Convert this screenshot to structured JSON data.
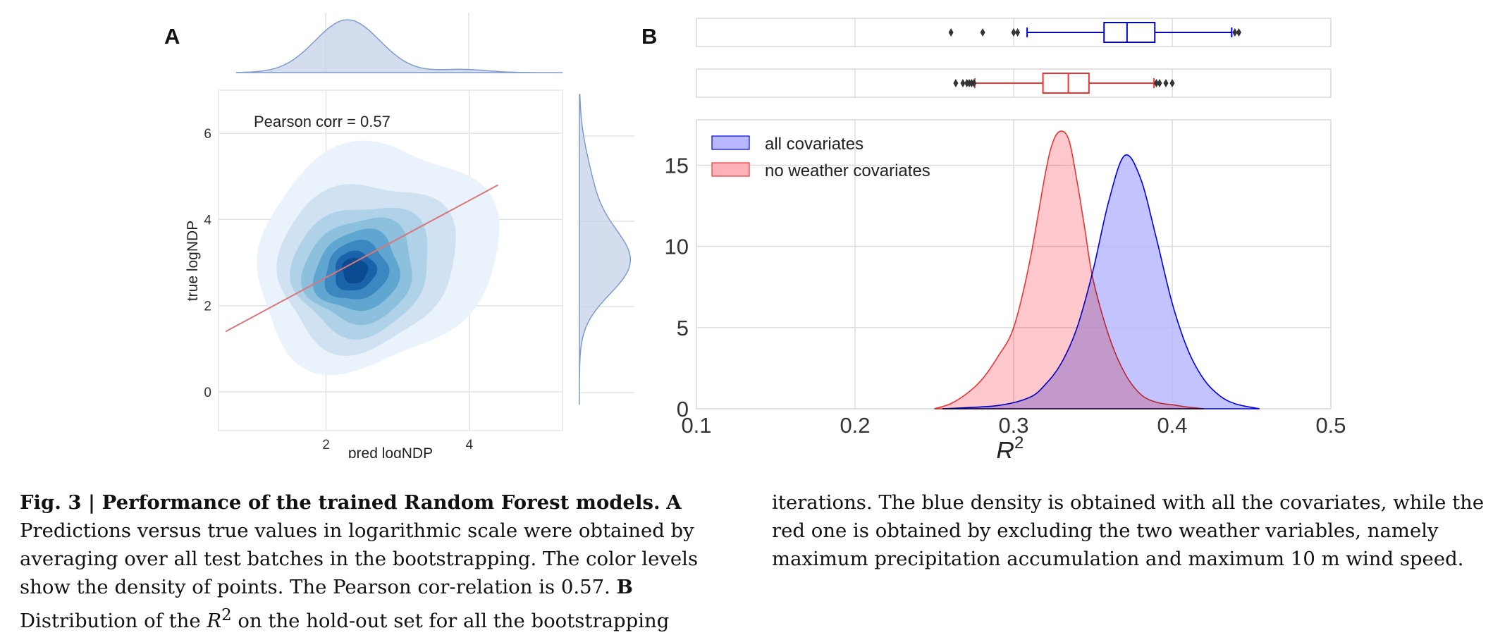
{
  "figure": {
    "panel_a_label": "A",
    "panel_b_label": "B"
  },
  "chart_data": [
    {
      "type": "kde2d",
      "panel": "A",
      "xlabel": "pred logNDP",
      "ylabel": "true logNDP",
      "xticks": [
        "2",
        "4"
      ],
      "yticks": [
        "0",
        "2",
        "4",
        "6"
      ],
      "xlim": [
        0.5,
        5.3
      ],
      "ylim": [
        -0.9,
        7.0
      ],
      "annotation": "Pearson corr = 0.57",
      "pearson_corr": 0.57,
      "density_center": [
        2.4,
        2.85
      ],
      "density_levels": 7,
      "regression_line": {
        "x": [
          0.6,
          4.4
        ],
        "y": [
          1.4,
          4.8
        ]
      },
      "marginal_x_peak": 2.3,
      "marginal_y_peak": 3.0,
      "grid": true,
      "colors": {
        "density": [
          "#eaf2fb",
          "#d0e1f2",
          "#b0d2e8",
          "#8dc0dd",
          "#5fa6d1",
          "#3d87c0",
          "#1a63aa",
          "#0a4b91"
        ],
        "regression": "#d9777a",
        "marginal": "#7e9ccc"
      }
    },
    {
      "type": "density_boxplot",
      "panel": "B",
      "xlabel": "R²",
      "xlabel_base": "R",
      "xlabel_sup": "2",
      "xticks": [
        "0.1",
        "0.2",
        "0.3",
        "0.4",
        "0.5"
      ],
      "yticks": [
        "0",
        "5",
        "10",
        "15"
      ],
      "xlim": [
        0.1,
        0.5
      ],
      "ylim": [
        0,
        17.8
      ],
      "legend_placement": "top-left",
      "grid": true,
      "series": [
        {
          "name": "all covariates",
          "color": "#0000ee",
          "fill": "#b8b8ff",
          "density": {
            "x": [
              0.255,
              0.29,
              0.31,
              0.32,
              0.33,
              0.34,
              0.35,
              0.36,
              0.37,
              0.38,
              0.39,
              0.4,
              0.41,
              0.42,
              0.43,
              0.44,
              0.455
            ],
            "y": [
              0,
              0.2,
              0.7,
              1.5,
              2.8,
              5.0,
              8.5,
              12.8,
              15.6,
              14.2,
              10.5,
              6.5,
              3.6,
              1.8,
              0.8,
              0.3,
              0
            ]
          },
          "box": {
            "q1": 0.357,
            "median": 0.3715,
            "q3": 0.389,
            "whisker_low": 0.3085,
            "whisker_high": 0.4375,
            "outliers": [
              0.2605,
              0.2805,
              0.3,
              0.3025,
              0.4395,
              0.442
            ]
          }
        },
        {
          "name": "no weather covariates",
          "color": "#ee3333",
          "fill": "#ffb3b8",
          "density": {
            "x": [
              0.25,
              0.26,
              0.27,
              0.28,
              0.29,
              0.3,
              0.31,
              0.32,
              0.325,
              0.33,
              0.335,
              0.34,
              0.345,
              0.35,
              0.36,
              0.37,
              0.38,
              0.39,
              0.4,
              0.41,
              0.42
            ],
            "y": [
              0,
              0.3,
              0.9,
              1.8,
              3.2,
              5.0,
              9.0,
              14.5,
              16.5,
              17.1,
              16.5,
              14.0,
              11.0,
              8.0,
              4.5,
              2.2,
              0.9,
              0.4,
              0.25,
              0.1,
              0
            ]
          },
          "box": {
            "q1": 0.3185,
            "median": 0.3345,
            "q3": 0.3475,
            "whisker_low": 0.2755,
            "whisker_high": 0.3885,
            "outliers": [
              0.2635,
              0.268,
              0.2705,
              0.272,
              0.2735,
              0.275,
              0.39,
              0.392,
              0.396,
              0.4
            ]
          }
        }
      ]
    }
  ],
  "caption": {
    "fig_label": "Fig. 3 | Performance of the trained Random Forest models.",
    "a_label": "A",
    "a_text_1": " Predictions versus true values in logarithmic scale were obtained by averaging over all test batches in the bootstrapping. The color levels show the density of points. The Pearson cor-relation is 0.57.",
    "b_label": "B",
    "b_text_1": " Distribution of the ",
    "b_r": "R",
    "b_sup": "2",
    "b_text_2": " on the hold-out set for all the bootstrapping",
    "right_text": "iterations. The blue density is obtained with all the covariates, while the red one is obtained by excluding the two weather variables, namely maximum precipitation accumulation and maximum 10 m wind speed."
  }
}
